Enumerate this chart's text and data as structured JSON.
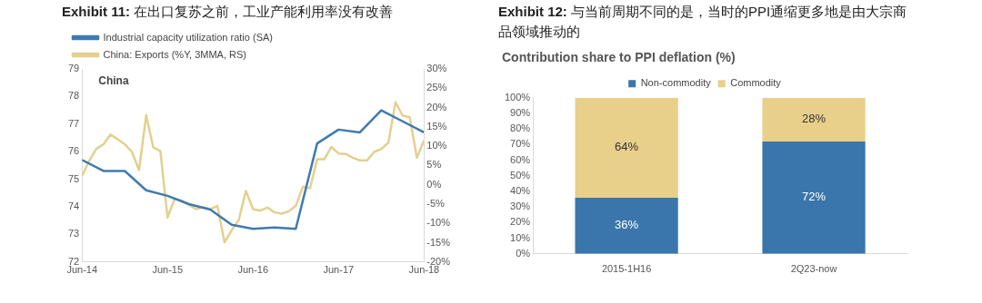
{
  "chart_data": [
    {
      "type": "line",
      "title": "Exhibit 11: 在出口复苏之前，工业产能利用率没有改善",
      "annotations": [
        "China"
      ],
      "legend": "top",
      "marker": "none",
      "line_style": "solid",
      "grid": false,
      "xlim": [
        "2014-06",
        "2018-06"
      ],
      "xticks": [
        {
          "value": "2014-06",
          "label": "Jun-14"
        },
        {
          "value": "2015-06",
          "label": "Jun-15"
        },
        {
          "value": "2016-06",
          "label": "Jun-16"
        },
        {
          "value": "2017-06",
          "label": "Jun-17"
        },
        {
          "value": "2018-06",
          "label": "Jun-18"
        }
      ],
      "ylim": [
        72,
        79
      ],
      "yticks": [
        72,
        73,
        74,
        75,
        76,
        77,
        78,
        79
      ],
      "y2lim": [
        -20,
        30
      ],
      "y2ticks": [
        {
          "value": -20,
          "label": "-20%"
        },
        {
          "value": -15,
          "label": "-15%"
        },
        {
          "value": -10,
          "label": "-10%"
        },
        {
          "value": -5,
          "label": "-5%"
        },
        {
          "value": 0,
          "label": "0%"
        },
        {
          "value": 5,
          "label": "5%"
        },
        {
          "value": 10,
          "label": "10%"
        },
        {
          "value": 15,
          "label": "15%"
        },
        {
          "value": 20,
          "label": "20%"
        },
        {
          "value": 25,
          "label": "25%"
        },
        {
          "value": 30,
          "label": "30%"
        }
      ],
      "series": [
        {
          "name": "Industrial capacity utilization ratio (SA)",
          "color": "#3f7bae",
          "x": [
            "2014-06",
            "2014-09",
            "2014-12",
            "2015-03",
            "2015-06",
            "2015-09",
            "2015-12",
            "2016-03",
            "2016-06",
            "2016-09",
            "2016-12",
            "2017-03",
            "2017-06",
            "2017-09",
            "2017-12",
            "2018-03",
            "2018-06"
          ],
          "values": [
            75.7,
            75.3,
            75.3,
            74.6,
            74.4,
            74.1,
            73.9,
            73.35,
            73.2,
            73.25,
            73.2,
            76.3,
            76.8,
            76.7,
            77.5,
            77.1,
            76.7
          ]
        },
        {
          "name": "China: Exports (%Y, 3MMA, RS)",
          "color": "#e3d08f",
          "axis": "y2",
          "x": [
            "2014-06",
            "2014-07",
            "2014-08",
            "2014-09",
            "2014-10",
            "2014-11",
            "2014-12",
            "2015-01",
            "2015-02",
            "2015-03",
            "2015-04",
            "2015-05",
            "2015-06",
            "2015-07",
            "2015-08",
            "2015-09",
            "2015-10",
            "2015-11",
            "2015-12",
            "2016-01",
            "2016-02",
            "2016-03",
            "2016-04",
            "2016-05",
            "2016-06",
            "2016-07",
            "2016-08",
            "2016-09",
            "2016-10",
            "2016-11",
            "2016-12",
            "2017-01",
            "2017-02",
            "2017-03",
            "2017-04",
            "2017-05",
            "2017-06",
            "2017-07",
            "2017-08",
            "2017-09",
            "2017-10",
            "2017-11",
            "2017-12",
            "2018-01",
            "2018-02",
            "2018-03",
            "2018-04",
            "2018-05",
            "2018-06"
          ],
          "values": [
            2.3,
            6.2,
            9.3,
            10.5,
            13,
            11.8,
            10.5,
            8.5,
            3.8,
            18,
            9.7,
            8.7,
            -8.5,
            -3.6,
            -4.1,
            -5.2,
            -6.3,
            -5.8,
            -6.3,
            -5.5,
            -14.9,
            -11.8,
            -9.1,
            -1.6,
            -6.3,
            -6.7,
            -5.9,
            -7.1,
            -7.5,
            -6.9,
            -5.5,
            -0.5,
            -0.9,
            6.6,
            6.6,
            9.8,
            8.1,
            8,
            7,
            6.3,
            6.3,
            8.5,
            9.3,
            10.9,
            21.4,
            17.9,
            17.5,
            7,
            11.5
          ]
        }
      ]
    },
    {
      "type": "bar",
      "stacked": true,
      "title": "Exhibit 12: 与当前周期不同的是，当时的PPI通缩更多地是由大宗商品领域推动的",
      "subtitle": "Contribution share to PPI deflation (%)",
      "legend": "top",
      "grid": false,
      "categories": [
        "2015-1H16",
        "2Q23-now"
      ],
      "ylim": [
        0,
        100
      ],
      "yticks": [
        {
          "value": 0,
          "label": "0%"
        },
        {
          "value": 10,
          "label": "10%"
        },
        {
          "value": 20,
          "label": "20%"
        },
        {
          "value": 30,
          "label": "30%"
        },
        {
          "value": 40,
          "label": "40%"
        },
        {
          "value": 50,
          "label": "50%"
        },
        {
          "value": 60,
          "label": "60%"
        },
        {
          "value": 70,
          "label": "70%"
        },
        {
          "value": 80,
          "label": "80%"
        },
        {
          "value": 90,
          "label": "90%"
        },
        {
          "value": 100,
          "label": "100%"
        }
      ],
      "series": [
        {
          "name": "Non-commodity",
          "color": "#3a76ab",
          "values": [
            36,
            72
          ],
          "value_labels": [
            "36%",
            "72%"
          ]
        },
        {
          "name": "Commodity",
          "color": "#e8cf8a",
          "values": [
            64,
            28
          ],
          "value_labels": [
            "64%",
            "28%"
          ]
        }
      ]
    }
  ]
}
